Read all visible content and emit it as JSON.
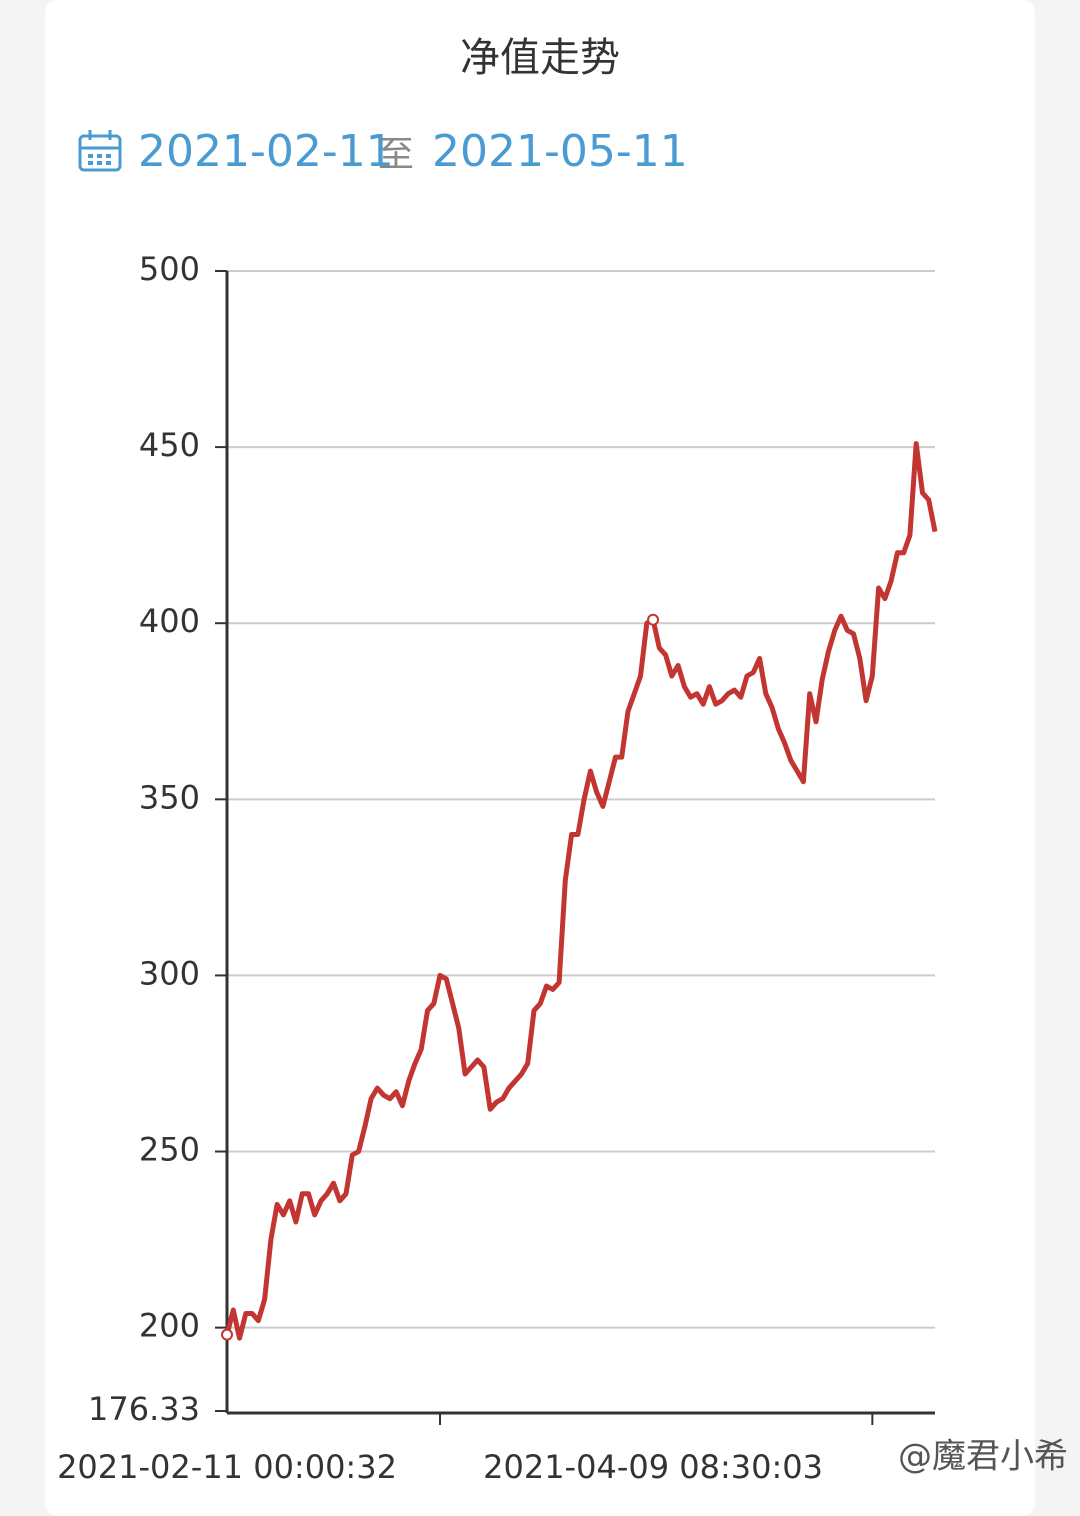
{
  "chart_data": {
    "type": "line",
    "title": "净值走势",
    "date_range": {
      "from": "2021-02-11",
      "separator": "至",
      "to": "2021-05-11"
    },
    "categories": [
      "2021-02-11 00:00:32",
      null,
      null,
      null,
      null,
      null,
      null,
      null,
      null,
      null,
      null,
      null,
      null,
      null,
      null,
      null,
      null,
      null,
      null,
      null,
      null,
      null,
      null,
      null,
      null,
      null,
      null,
      null,
      null,
      null,
      null,
      null,
      null,
      null,
      null,
      null,
      null,
      null,
      null,
      null,
      null,
      null,
      null,
      null,
      null,
      null,
      null,
      null,
      null,
      null,
      null,
      null,
      null,
      null,
      null,
      null,
      null,
      null,
      null,
      null,
      null,
      null,
      null,
      null,
      null,
      null,
      null,
      null,
      "2021-04-09 08:30:03",
      null,
      null,
      null,
      null,
      null,
      null,
      null,
      null,
      null,
      null,
      null,
      null,
      null,
      null,
      null,
      null,
      null,
      null,
      null,
      null,
      null,
      null,
      null,
      null,
      null,
      null,
      null,
      null,
      null,
      null,
      null,
      null,
      null,
      null,
      null,
      null,
      null,
      null,
      null,
      null,
      null,
      null,
      null,
      null,
      null
    ],
    "series": [
      {
        "color": "#c23531",
        "values": [
          198,
          205,
          197,
          204,
          204,
          202,
          208,
          225,
          235,
          232,
          236,
          230,
          238,
          238,
          232,
          236,
          238,
          241,
          236,
          238,
          249,
          250,
          257,
          265,
          268,
          266,
          265,
          267,
          263,
          270,
          275,
          279,
          290,
          292,
          300,
          299,
          292,
          285,
          272,
          274,
          276,
          274,
          262,
          264,
          265,
          268,
          270,
          272,
          275,
          290,
          292,
          297,
          296,
          298,
          327,
          340,
          340,
          350,
          358,
          352,
          348,
          355,
          362,
          362,
          375,
          380,
          385,
          400,
          401,
          393,
          391,
          385,
          388,
          382,
          379,
          380,
          377,
          382,
          377,
          378,
          380,
          381,
          379,
          385,
          386,
          390,
          380,
          376,
          370,
          366,
          361,
          358,
          355,
          380,
          372,
          384,
          392,
          398,
          402,
          398,
          397,
          390,
          378,
          385,
          410,
          407,
          412,
          420,
          420,
          425,
          451,
          437,
          435,
          426
        ]
      }
    ],
    "ylim": [
      176.33,
      500
    ],
    "yticks": [
      176.33,
      200,
      250,
      300,
      350,
      400,
      450,
      500
    ],
    "xticks": [
      34,
      103
    ],
    "grid": true
  },
  "watermark": "@魔君小希"
}
